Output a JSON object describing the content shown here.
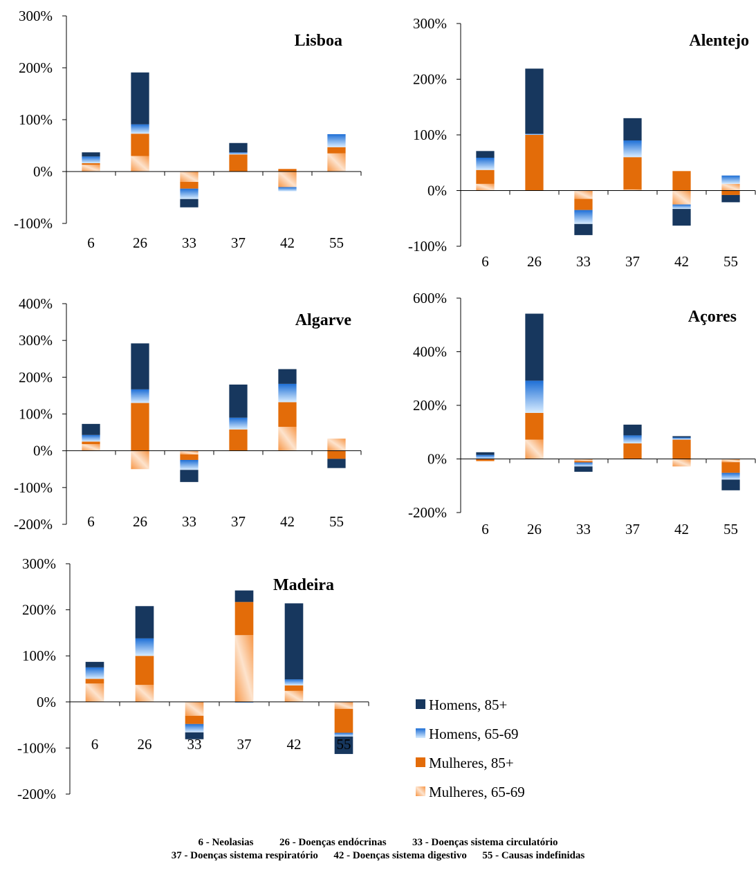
{
  "colors": {
    "homens_85": "#17375e",
    "homens_6569_top": "#1e6fd6",
    "homens_6569_bottom": "#d8ecff",
    "mulheres_85": "#e36c09",
    "mulheres_6569_a": "#f79646",
    "mulheres_6569_b": "#fde3cd"
  },
  "legend": [
    {
      "key": "homens_85",
      "label": "Homens, 85+"
    },
    {
      "key": "homens_6569",
      "label": "Homens, 65-69"
    },
    {
      "key": "mulheres_85",
      "label": "Mulheres, 85+"
    },
    {
      "key": "mulheres_6569",
      "label": "Mulheres, 65-69"
    }
  ],
  "footer": {
    "line1": "6 - Neolasias          26 - Doenças endócrinas          33 - Doenças sistema circulatório",
    "line2": "37 - Doenças sistema respiratório      42 - Doenças sistema digestivo      55 - Causas indefinidas"
  },
  "chart_data": [
    {
      "type": "bar",
      "stacked": true,
      "title": "Lisboa",
      "categories": [
        "6",
        "26",
        "33",
        "37",
        "42",
        "55"
      ],
      "ylim": [
        -100,
        300
      ],
      "yticks": [
        -100,
        0,
        100,
        200,
        300
      ],
      "series": [
        {
          "name": "Homens, 85+",
          "key": "homens_85",
          "values": [
            8,
            100,
            -16,
            18,
            0,
            0
          ]
        },
        {
          "name": "Homens, 65-69",
          "key": "homens_6569",
          "values": [
            13,
            18,
            -20,
            4,
            -8,
            25
          ]
        },
        {
          "name": "Mulheres, 85+",
          "key": "mulheres_85",
          "values": [
            3,
            43,
            -13,
            33,
            5,
            12
          ]
        },
        {
          "name": "Mulheres, 65-69",
          "key": "mulheres_6569",
          "values": [
            13,
            30,
            -20,
            0,
            -30,
            35
          ]
        }
      ]
    },
    {
      "type": "bar",
      "stacked": true,
      "title": "Alentejo",
      "categories": [
        "6",
        "26",
        "33",
        "37",
        "42",
        "55"
      ],
      "ylim": [
        -100,
        300
      ],
      "yticks": [
        -100,
        0,
        100,
        200,
        300
      ],
      "series": [
        {
          "name": "Homens, 85+",
          "key": "homens_85",
          "values": [
            12,
            117,
            -20,
            40,
            -30,
            -13
          ]
        },
        {
          "name": "Homens, 65-69",
          "key": "homens_6569",
          "values": [
            22,
            2,
            -25,
            30,
            -8,
            15
          ]
        },
        {
          "name": "Mulheres, 85+",
          "key": "mulheres_85",
          "values": [
            25,
            100,
            -20,
            58,
            35,
            -8
          ]
        },
        {
          "name": "Mulheres, 65-69",
          "key": "mulheres_6569",
          "values": [
            12,
            0,
            -15,
            2,
            -25,
            12
          ]
        }
      ]
    },
    {
      "type": "bar",
      "stacked": true,
      "title": "Algarve",
      "categories": [
        "6",
        "26",
        "33",
        "37",
        "42",
        "55"
      ],
      "ylim": [
        -200,
        400
      ],
      "yticks": [
        -200,
        -100,
        0,
        100,
        200,
        300,
        400
      ],
      "series": [
        {
          "name": "Homens, 85+",
          "key": "homens_85",
          "values": [
            30,
            125,
            -33,
            90,
            40,
            -25
          ]
        },
        {
          "name": "Homens, 65-69",
          "key": "homens_6569",
          "values": [
            18,
            37,
            -27,
            32,
            50,
            0
          ]
        },
        {
          "name": "Mulheres, 85+",
          "key": "mulheres_85",
          "values": [
            7,
            130,
            -15,
            58,
            67,
            -22
          ]
        },
        {
          "name": "Mulheres, 65-69",
          "key": "mulheres_6569",
          "values": [
            18,
            -50,
            -10,
            0,
            65,
            33
          ]
        }
      ]
    },
    {
      "type": "bar",
      "stacked": true,
      "title": "Açores",
      "categories": [
        "6",
        "26",
        "33",
        "37",
        "42",
        "55"
      ],
      "ylim": [
        -200,
        600
      ],
      "yticks": [
        -200,
        0,
        200,
        400,
        600
      ],
      "series": [
        {
          "name": "Homens, 85+",
          "key": "homens_85",
          "values": [
            10,
            250,
            -20,
            40,
            5,
            -40
          ]
        },
        {
          "name": "Homens, 65-69",
          "key": "homens_6569",
          "values": [
            15,
            120,
            -15,
            30,
            8,
            -25
          ]
        },
        {
          "name": "Mulheres, 85+",
          "key": "mulheres_85",
          "values": [
            -8,
            100,
            -5,
            58,
            72,
            -40
          ]
        },
        {
          "name": "Mulheres, 65-69",
          "key": "mulheres_6569",
          "values": [
            0,
            72,
            -8,
            0,
            -28,
            -12
          ]
        }
      ]
    },
    {
      "type": "bar",
      "stacked": true,
      "title": "Madeira",
      "categories": [
        "6",
        "26",
        "33",
        "37",
        "42",
        "55"
      ],
      "ylim": [
        -200,
        300
      ],
      "yticks": [
        -200,
        -100,
        0,
        100,
        200,
        300
      ],
      "series": [
        {
          "name": "Homens, 85+",
          "key": "homens_85",
          "values": [
            12,
            70,
            -15,
            25,
            165,
            -38
          ]
        },
        {
          "name": "Homens, 65-69",
          "key": "homens_6569",
          "values": [
            25,
            38,
            -18,
            -2,
            13,
            -8
          ]
        },
        {
          "name": "Mulheres, 85+",
          "key": "mulheres_85",
          "values": [
            10,
            63,
            -18,
            72,
            12,
            -52
          ]
        },
        {
          "name": "Mulheres, 65-69",
          "key": "mulheres_6569",
          "values": [
            40,
            37,
            -30,
            145,
            24,
            -15
          ]
        }
      ]
    }
  ]
}
